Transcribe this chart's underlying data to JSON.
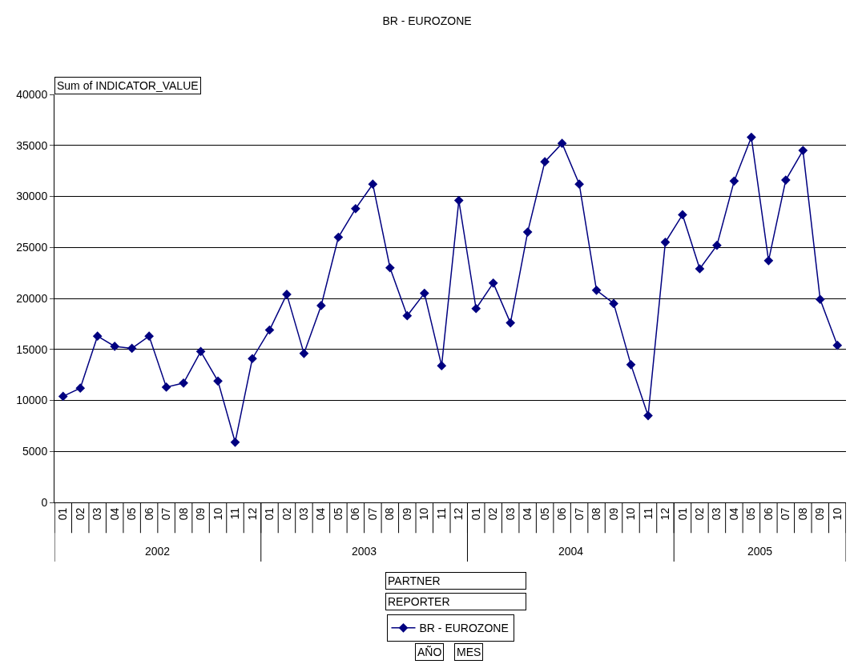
{
  "chart_data": {
    "type": "line",
    "title": "BR - EUROZONE",
    "categories": [
      "01",
      "02",
      "03",
      "04",
      "05",
      "06",
      "07",
      "08",
      "09",
      "10",
      "11",
      "12",
      "01",
      "02",
      "03",
      "04",
      "05",
      "06",
      "07",
      "08",
      "09",
      "10",
      "11",
      "12",
      "01",
      "02",
      "03",
      "04",
      "05",
      "06",
      "07",
      "08",
      "09",
      "10",
      "11",
      "12",
      "01",
      "02",
      "03",
      "04",
      "05",
      "06",
      "07",
      "08",
      "09",
      "10"
    ],
    "series": [
      {
        "name": "BR - EUROZONE",
        "color": "#000080",
        "values": [
          10400,
          11200,
          16300,
          15300,
          15100,
          16300,
          11300,
          11700,
          14800,
          11900,
          5900,
          14100,
          16900,
          20400,
          14600,
          19300,
          26000,
          28800,
          31200,
          23000,
          18300,
          20500,
          13400,
          29600,
          19000,
          21500,
          17600,
          26500,
          33400,
          35200,
          31200,
          20800,
          19500,
          13500,
          8500,
          25500,
          28200,
          22900,
          25200,
          31500,
          35800,
          23700,
          31600,
          34500,
          19900,
          15400
        ]
      }
    ],
    "ylim": [
      0,
      40000
    ],
    "yticks": [
      0,
      5000,
      10000,
      15000,
      20000,
      25000,
      30000,
      35000,
      40000
    ],
    "grid": "y",
    "marker": "diamond",
    "line_style": "solid",
    "legend": "bottom",
    "annotations": [
      "2002",
      "2003",
      "2004",
      "2005",
      "Sum of INDICATOR_VALUE",
      "PARTNER",
      "REPORTER",
      "AÑO",
      "MES"
    ]
  }
}
